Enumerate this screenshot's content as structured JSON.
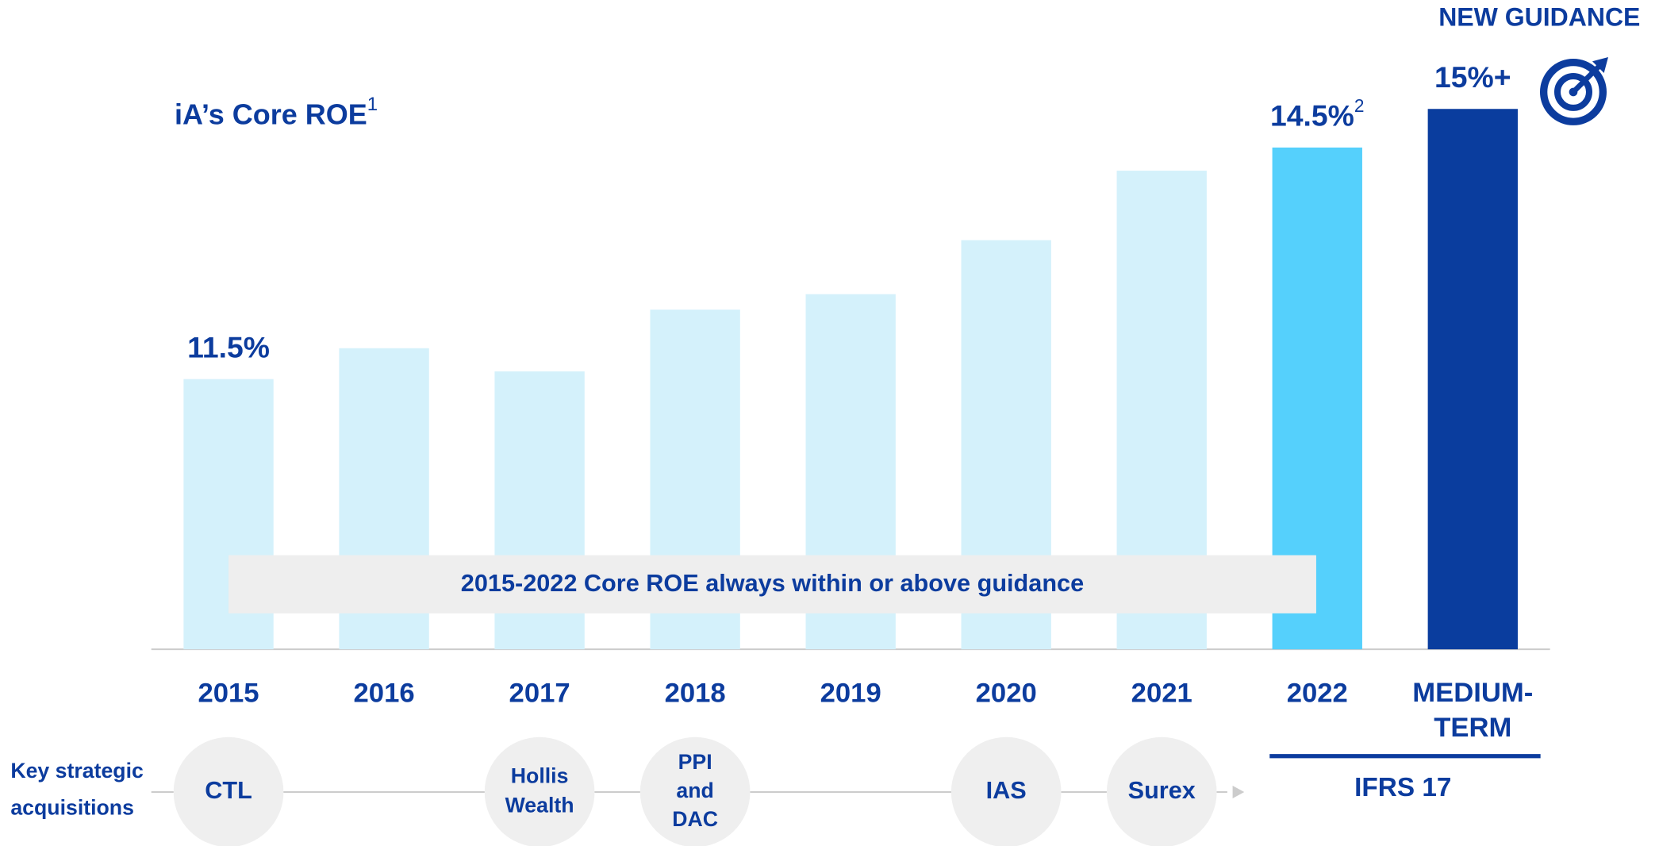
{
  "chart_data": {
    "type": "bar",
    "title": "iA’s Core ROE",
    "title_note": "1",
    "header": "NEW GUIDANCE",
    "banner": "2015-2022 Core ROE always within or above guidance",
    "categories": [
      "2015",
      "2016",
      "2017",
      "2018",
      "2019",
      "2020",
      "2021",
      "2022",
      [
        "MEDIUM-",
        "TERM"
      ]
    ],
    "values": [
      11.5,
      11.9,
      11.6,
      12.4,
      12.6,
      13.3,
      14.2,
      14.5,
      15
    ],
    "value_labels": [
      "11.5%",
      null,
      null,
      null,
      null,
      null,
      null,
      "14.5%",
      "15%+"
    ],
    "value_label_notes": [
      null,
      null,
      null,
      null,
      null,
      null,
      null,
      "2",
      null
    ],
    "colors": [
      "#d4f1fb",
      "#d4f1fb",
      "#d4f1fb",
      "#d4f1fb",
      "#d4f1fb",
      "#d4f1fb",
      "#d4f1fb",
      "#55d0fc",
      "#0a3d9e"
    ],
    "ylim": [
      8,
      16
    ],
    "acquisitions_label": [
      "Key strategic",
      "acquisitions"
    ],
    "acquisitions": [
      [
        "CTL"
      ],
      null,
      [
        "Hollis",
        "Wealth"
      ],
      [
        "PPI",
        "and",
        "DAC"
      ],
      null,
      [
        "IAS"
      ],
      [
        "Surex"
      ],
      null,
      null
    ],
    "standard": "IFRS 17"
  }
}
